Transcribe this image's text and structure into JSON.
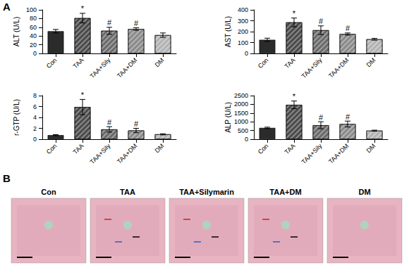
{
  "panel_labels": [
    "A",
    "B"
  ],
  "micrographs": [
    "Con",
    "TAA",
    "TAA+Silymarin",
    "TAA+DM",
    "DM"
  ],
  "chart_data": [
    {
      "type": "bar",
      "y_label": "ALT (U/L)",
      "categories": [
        "Con",
        "TAA",
        "TAA+Sily",
        "TAA+DM",
        "DM"
      ],
      "values": [
        51,
        81,
        52,
        56,
        42
      ],
      "errors": [
        4,
        11,
        8,
        3,
        5
      ],
      "annotations": [
        null,
        "*",
        "#",
        "#",
        null
      ],
      "colors": [
        "#2b2b2b",
        "#4a4a4a",
        "#6a6a6a",
        "#8a8a8a",
        "#b2b2b2"
      ],
      "ylim": [
        0,
        100
      ],
      "yticks": [
        0,
        20,
        40,
        60,
        80,
        100
      ]
    },
    {
      "type": "bar",
      "y_label": "AST (U/L)",
      "categories": [
        "Con",
        "TAA",
        "TAA+Sily",
        "TAA+DM",
        "DM"
      ],
      "values": [
        125,
        285,
        213,
        178,
        130
      ],
      "errors": [
        15,
        40,
        40,
        10,
        8
      ],
      "annotations": [
        null,
        "*",
        "#",
        "#",
        null
      ],
      "colors": [
        "#2b2b2b",
        "#4a4a4a",
        "#6a6a6a",
        "#8a8a8a",
        "#b2b2b2"
      ],
      "ylim": [
        0,
        400
      ],
      "yticks": [
        0,
        100,
        200,
        300,
        400
      ]
    },
    {
      "type": "bar",
      "y_label": "r-GTP (U/L)",
      "categories": [
        "Con",
        "TAA",
        "TAA+Sily",
        "TAA+DM",
        "DM"
      ],
      "values": [
        0.75,
        5.9,
        1.8,
        1.6,
        0.9
      ],
      "errors": [
        0.1,
        1.4,
        0.5,
        0.4,
        0.1
      ],
      "annotations": [
        null,
        "*",
        "#",
        "#",
        null
      ],
      "colors": [
        "#2b2b2b",
        "#4a4a4a",
        "#6a6a6a",
        "#8a8a8a",
        "#b2b2b2"
      ],
      "ylim": [
        0,
        8
      ],
      "yticks": [
        0,
        2,
        4,
        6,
        8
      ]
    },
    {
      "type": "bar",
      "y_label": "ALP (U/L)",
      "categories": [
        "Con",
        "TAA",
        "TAA+Sily",
        "TAA+DM",
        "DM"
      ],
      "values": [
        650,
        1970,
        800,
        870,
        490
      ],
      "errors": [
        40,
        220,
        200,
        170,
        30
      ],
      "annotations": [
        null,
        "*",
        "#",
        "#",
        null
      ],
      "colors": [
        "#2b2b2b",
        "#4a4a4a",
        "#6a6a6a",
        "#8a8a8a",
        "#b2b2b2"
      ],
      "ylim": [
        0,
        2500
      ],
      "yticks": [
        0,
        500,
        1000,
        1500,
        2000,
        2500
      ]
    }
  ]
}
